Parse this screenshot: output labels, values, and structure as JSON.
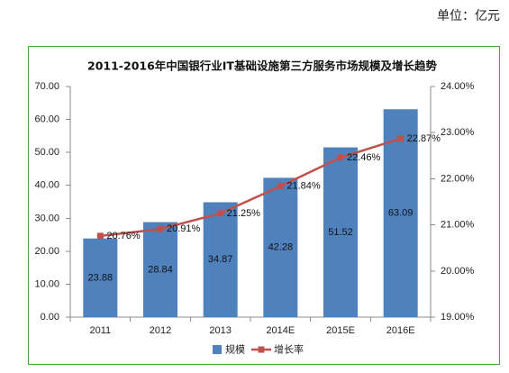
{
  "unit_note": "单位：亿元",
  "frame_color": "#48a23f",
  "chart_data": {
    "type": "bar",
    "title": "2011-2016年中国银行业IT基础设施第三方服务市场规模及增长趋势",
    "categories": [
      "2011",
      "2012",
      "2013",
      "2014E",
      "2015E",
      "2016E"
    ],
    "series": [
      {
        "name": "规模",
        "type": "bar",
        "axis": "left",
        "color": "#4f81bd",
        "values": [
          23.88,
          28.84,
          34.87,
          42.28,
          51.52,
          63.09
        ]
      },
      {
        "name": "增长率",
        "type": "line",
        "axis": "right",
        "marker": "square",
        "color": "#c0504d",
        "values": [
          20.76,
          20.91,
          21.25,
          21.84,
          22.46,
          22.87
        ]
      }
    ],
    "ylim": [
      0,
      70
    ],
    "yticks": [
      0,
      10,
      20,
      30,
      40,
      50,
      60,
      70
    ],
    "y2lim": [
      19,
      24
    ],
    "y2ticks": [
      19,
      20,
      21,
      22,
      23,
      24
    ],
    "y2_unit": "%",
    "data_labels": true,
    "grid": false,
    "legend": "bottom"
  }
}
